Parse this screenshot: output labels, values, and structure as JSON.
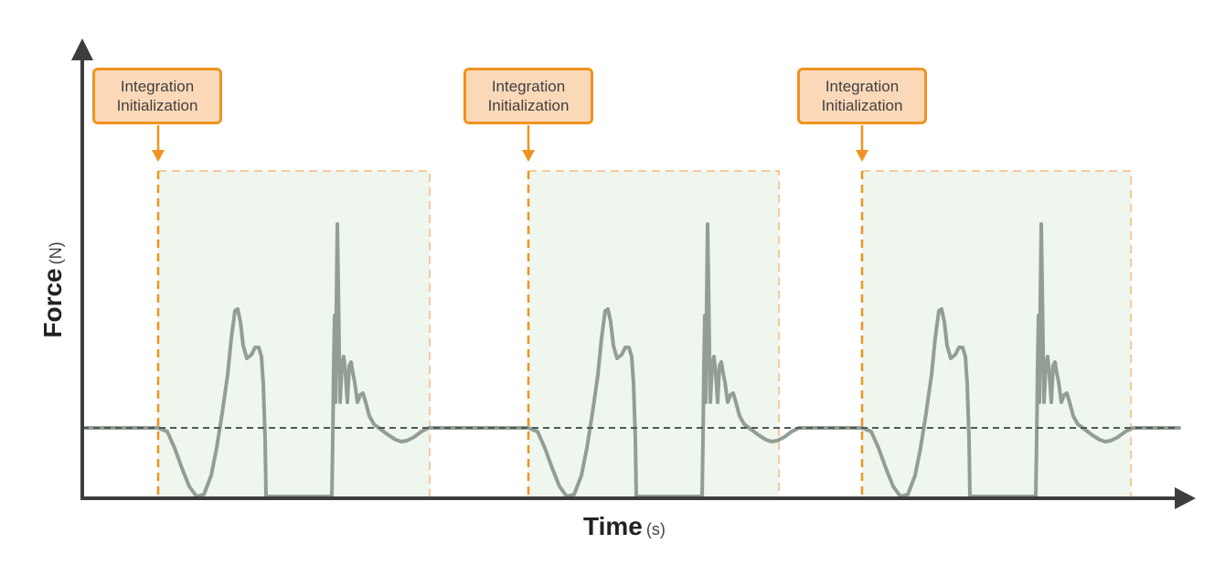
{
  "axes": {
    "x": {
      "label": "Time",
      "unit": "(s)"
    },
    "y": {
      "label": "Force",
      "unit": "(N)"
    }
  },
  "windows": [
    {
      "label_line1": "Integration",
      "label_line2": "Initialization"
    },
    {
      "label_line1": "Integration",
      "label_line2": "Initialization"
    },
    {
      "label_line1": "Integration",
      "label_line2": "Initialization"
    }
  ],
  "colors": {
    "axis": "#3d3d3d",
    "accent": "#f0931e",
    "callout_fill": "#fbd9b8",
    "window_fill": "#eef6ee",
    "signal": "#929e93",
    "baseline": "#4f5a55"
  }
}
